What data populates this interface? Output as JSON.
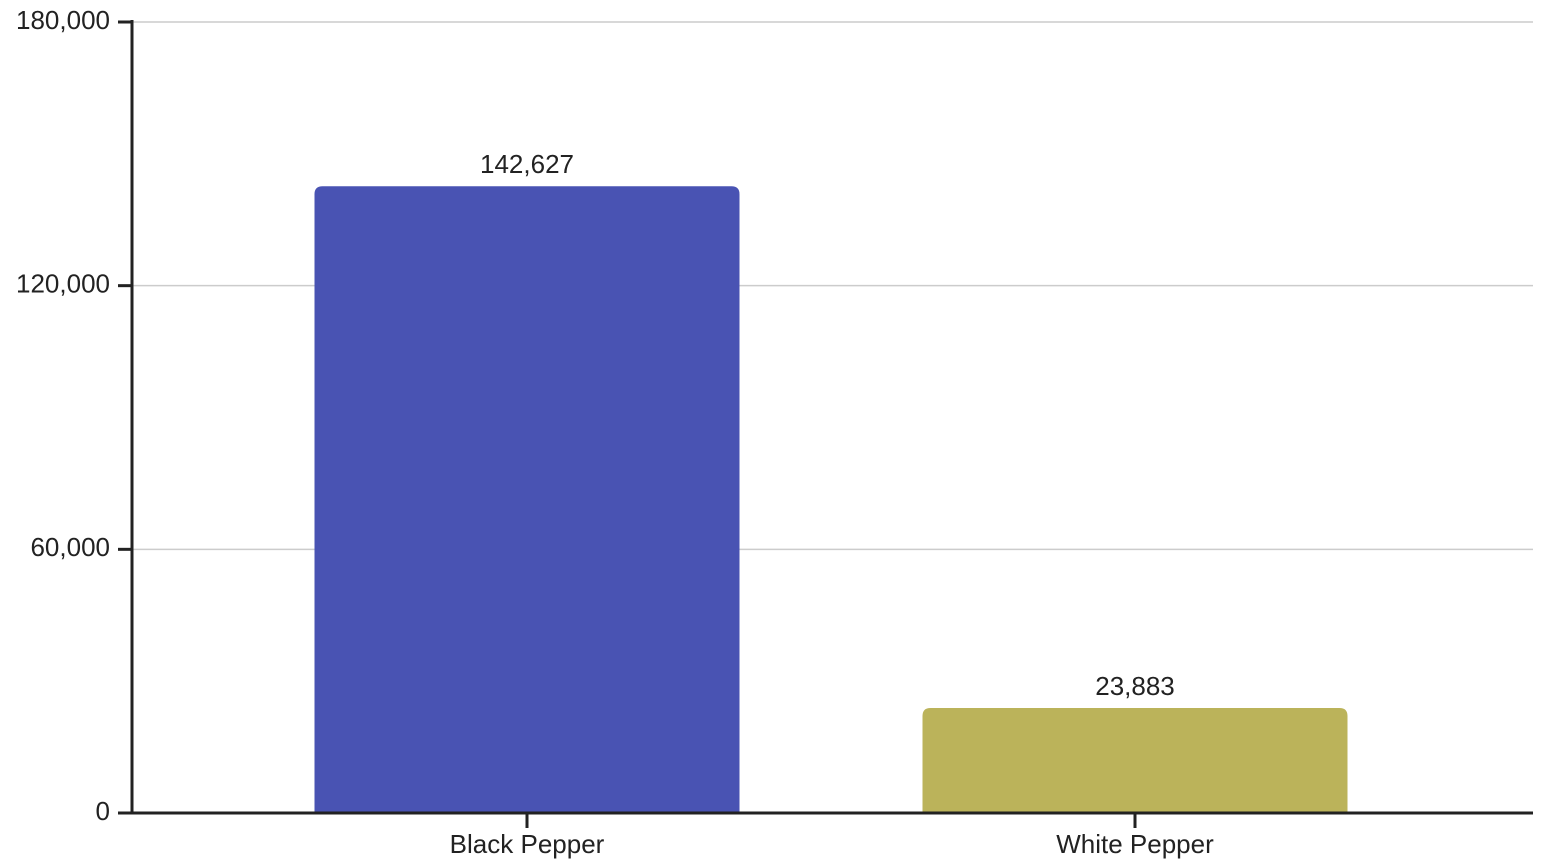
{
  "chart_data": {
    "type": "bar",
    "categories": [
      "Black Pepper",
      "White Pepper"
    ],
    "values": [
      142627,
      23883
    ],
    "value_labels": [
      "142,627",
      "23,883"
    ],
    "colors": [
      "#4953b3",
      "#bbb35a"
    ],
    "ylim": [
      0,
      180000
    ],
    "yticks": [
      0,
      {
        "value": 60000,
        "label": "60,000"
      },
      {
        "value": 120000,
        "label": "120,000"
      },
      {
        "value": 180000,
        "label": "180,000"
      }
    ],
    "grid": true
  }
}
